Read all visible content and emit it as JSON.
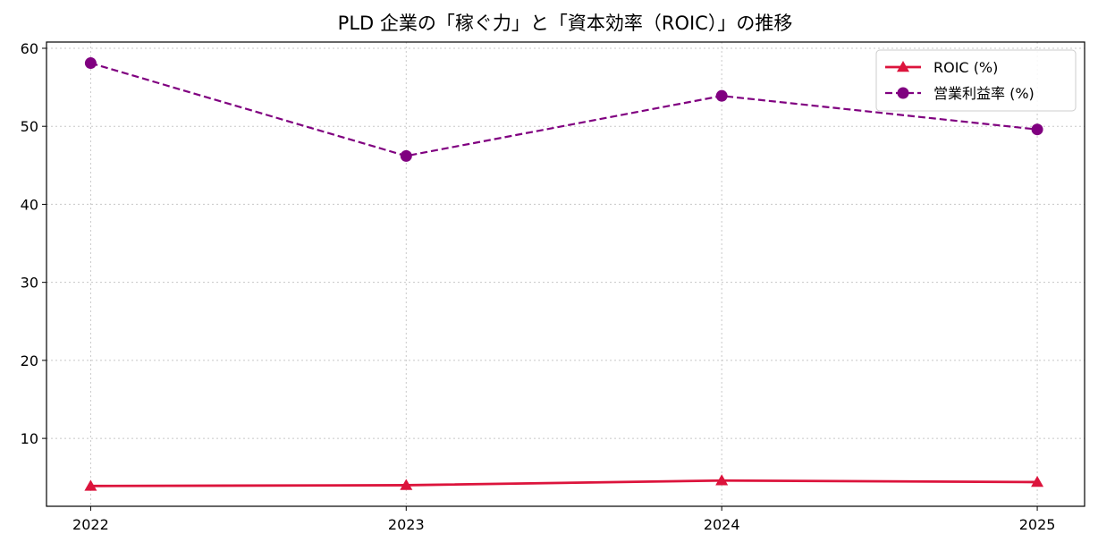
{
  "chart_data": {
    "type": "line",
    "title": "PLD 企業の「稼ぐ力」と「資本効率（ROIC）」の推移",
    "xlabel": "",
    "ylabel": "",
    "categories": [
      "2022",
      "2023",
      "2024",
      "2025"
    ],
    "x": [
      2022,
      2023,
      2024,
      2025
    ],
    "xlim": [
      2021.86,
      2025.15
    ],
    "ylim": [
      1.3,
      60.8
    ],
    "yticks": [
      10,
      20,
      30,
      40,
      50,
      60
    ],
    "grid": true,
    "legend_position": "top-right",
    "series": [
      {
        "name": "ROIC (%)",
        "values": [
          3.9,
          4.0,
          4.6,
          4.4
        ],
        "color": "#dc143c",
        "line_style": "solid",
        "marker": "triangle"
      },
      {
        "name": "営業利益率 (%)",
        "values": [
          58.1,
          46.2,
          53.9,
          49.6
        ],
        "color": "#800080",
        "line_style": "dashed",
        "marker": "circle"
      }
    ]
  }
}
